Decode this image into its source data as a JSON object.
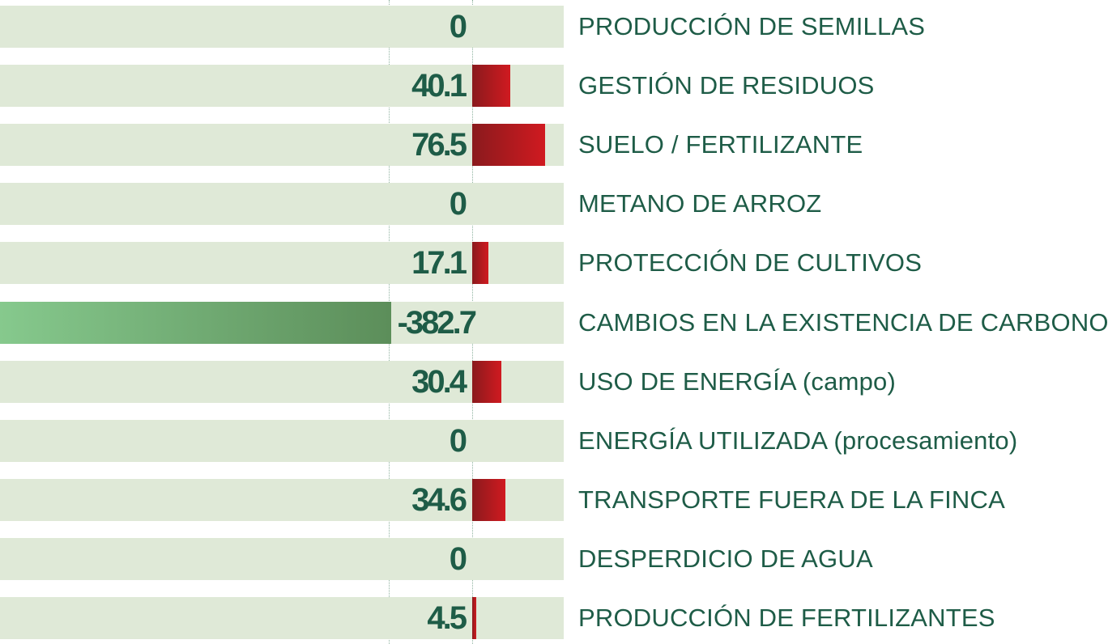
{
  "chart_data": {
    "type": "bar",
    "orientation": "horizontal",
    "categories": [
      "PRODUCCIÓN DE SEMILLAS",
      "GESTIÓN DE RESIDUOS",
      "SUELO / FERTILIZANTE",
      "METANO DE ARROZ",
      "PROTECCIÓN DE CULTIVOS",
      "CAMBIOS EN LA EXISTENCIA DE CARBONO",
      "USO DE ENERGÍA (campo)",
      "ENERGÍA UTILIZADA (procesamiento)",
      "TRANSPORTE FUERA DE LA FINCA",
      "DESPERDICIO DE AGUA",
      "PRODUCCIÓN DE FERTILIZANTES"
    ],
    "values": [
      0,
      40.1,
      76.5,
      0,
      17.1,
      -382.7,
      30.4,
      0,
      34.6,
      0,
      4.5
    ],
    "value_labels": [
      "0",
      "40.1",
      "76.5",
      "0",
      "17.1",
      "-382.7",
      "30.4",
      "0",
      "34.6",
      "0",
      "4.5"
    ],
    "xlim": [
      -382.7,
      94
    ],
    "legend": "none",
    "grid": false
  },
  "colors": {
    "row_background": "#dfe9d7",
    "label_text": "#1e5c47",
    "positive_bar_start": "#8a1a1d",
    "positive_bar_end": "#d01a20",
    "negative_bar_start": "#86c98d",
    "negative_bar_end": "#5c8e5a",
    "guide_line": "#8fb3a0"
  }
}
